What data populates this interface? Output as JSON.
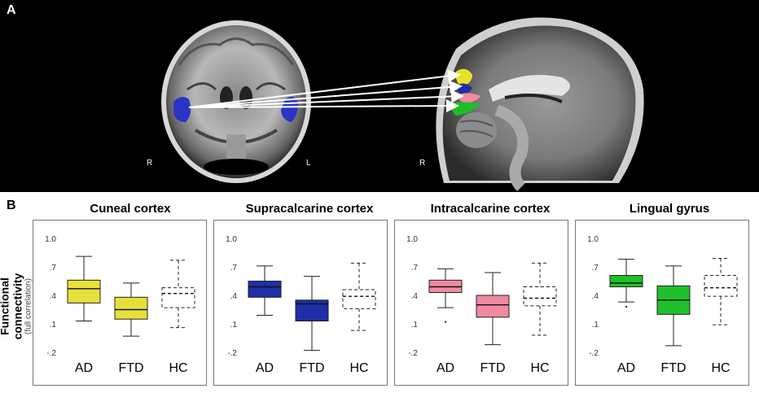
{
  "panel_a": {
    "letter": "A",
    "coronal_labels": [
      "R",
      "L"
    ],
    "sagittal_label": "R",
    "colors": {
      "cuneal": "#e7e227",
      "supracalcarine": "#1f2fa8",
      "intracalcarine": "#f28aa0",
      "lingual": "#1cbf2a",
      "seed": "#2a35c8"
    }
  },
  "panel_b": {
    "letter": "B",
    "ylabel": "Functional connectivity",
    "ylabel_sub": "(full correlation)"
  },
  "chart_data": [
    {
      "type": "box",
      "title": "Cuneal cortex",
      "color": "#e8e03a",
      "categories": [
        "AD",
        "FTD",
        "HC"
      ],
      "ylim": [
        -0.2,
        1.0
      ],
      "yticks": [
        "1.0",
        ".7",
        ".4",
        ".1",
        "-.2"
      ],
      "boxes": [
        {
          "min": 0.13,
          "q1": 0.32,
          "median": 0.47,
          "q3": 0.56,
          "max": 0.81,
          "style": "filled"
        },
        {
          "min": -0.03,
          "q1": 0.15,
          "median": 0.25,
          "q3": 0.38,
          "max": 0.53,
          "style": "filled"
        },
        {
          "min": 0.06,
          "q1": 0.27,
          "median": 0.42,
          "q3": 0.48,
          "max": 0.77,
          "style": "dashed"
        }
      ],
      "outliers": []
    },
    {
      "type": "box",
      "title": "Supracalcarine cortex",
      "color": "#1f2fa8",
      "categories": [
        "AD",
        "FTD",
        "HC"
      ],
      "ylim": [
        -0.2,
        1.0
      ],
      "yticks": [
        "1.0",
        ".7",
        ".4",
        ".1",
        "-.2"
      ],
      "boxes": [
        {
          "min": 0.19,
          "q1": 0.38,
          "median": 0.49,
          "q3": 0.55,
          "max": 0.71,
          "style": "filled"
        },
        {
          "min": -0.18,
          "q1": 0.13,
          "median": 0.31,
          "q3": 0.35,
          "max": 0.6,
          "style": "filled"
        },
        {
          "min": 0.03,
          "q1": 0.26,
          "median": 0.39,
          "q3": 0.46,
          "max": 0.74,
          "style": "dashed"
        }
      ],
      "outliers": []
    },
    {
      "type": "box",
      "title": "Intracalcarine cortex",
      "color": "#f08aa0",
      "categories": [
        "AD",
        "FTD",
        "HC"
      ],
      "ylim": [
        -0.2,
        1.0
      ],
      "yticks": [
        "1.0",
        ".7",
        ".4",
        ".1",
        "-.2"
      ],
      "boxes": [
        {
          "min": 0.27,
          "q1": 0.43,
          "median": 0.49,
          "q3": 0.56,
          "max": 0.68,
          "style": "filled"
        },
        {
          "min": -0.12,
          "q1": 0.17,
          "median": 0.3,
          "q3": 0.4,
          "max": 0.64,
          "style": "filled"
        },
        {
          "min": -0.02,
          "q1": 0.29,
          "median": 0.37,
          "q3": 0.49,
          "max": 0.74,
          "style": "dashed"
        }
      ],
      "outliers": [
        {
          "category": "AD",
          "value": 0.12
        }
      ]
    },
    {
      "type": "box",
      "title": "Lingual gyrus",
      "color": "#1fc02c",
      "categories": [
        "AD",
        "FTD",
        "HC"
      ],
      "ylim": [
        -0.2,
        1.0
      ],
      "yticks": [
        "1.0",
        ".7",
        ".4",
        ".1",
        "-.2"
      ],
      "boxes": [
        {
          "min": 0.33,
          "q1": 0.49,
          "median": 0.53,
          "q3": 0.61,
          "max": 0.78,
          "style": "filled"
        },
        {
          "min": -0.13,
          "q1": 0.2,
          "median": 0.35,
          "q3": 0.5,
          "max": 0.71,
          "style": "filled"
        },
        {
          "min": 0.09,
          "q1": 0.39,
          "median": 0.48,
          "q3": 0.61,
          "max": 0.79,
          "style": "dashed"
        }
      ],
      "outliers": [
        {
          "category": "AD",
          "value": 0.28
        }
      ]
    }
  ]
}
